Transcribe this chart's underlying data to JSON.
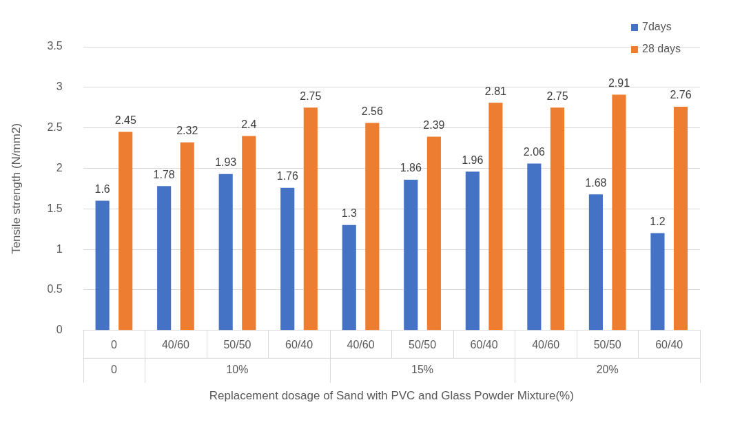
{
  "chart_data": {
    "type": "bar",
    "xlabel": "Replacement dosage of Sand with PVC and Glass Powder Mixture(%)",
    "ylabel": "Tensile strength (N/mm2)",
    "categories": [
      "0",
      "40/60",
      "50/50",
      "60/40",
      "40/60",
      "50/50",
      "60/40",
      "40/60",
      "50/50",
      "60/40"
    ],
    "series": [
      {
        "name": "7days",
        "color": "#4472c4",
        "values": [
          1.6,
          1.78,
          1.93,
          1.76,
          1.3,
          1.86,
          1.96,
          2.06,
          1.68,
          1.2
        ]
      },
      {
        "name": "28 days",
        "color": "#ed7d31",
        "values": [
          2.45,
          2.32,
          2.4,
          2.75,
          2.56,
          2.39,
          2.81,
          2.75,
          2.91,
          2.76
        ]
      }
    ],
    "annotations": [
      "0",
      "10%",
      "15%",
      "20%"
    ],
    "ylim": [
      0,
      3.5
    ],
    "yticks": [
      0,
      0.5,
      1,
      1.5,
      2,
      2.5,
      3,
      3.5
    ],
    "grid": "y",
    "legend": "top right",
    "data_labels": true
  }
}
